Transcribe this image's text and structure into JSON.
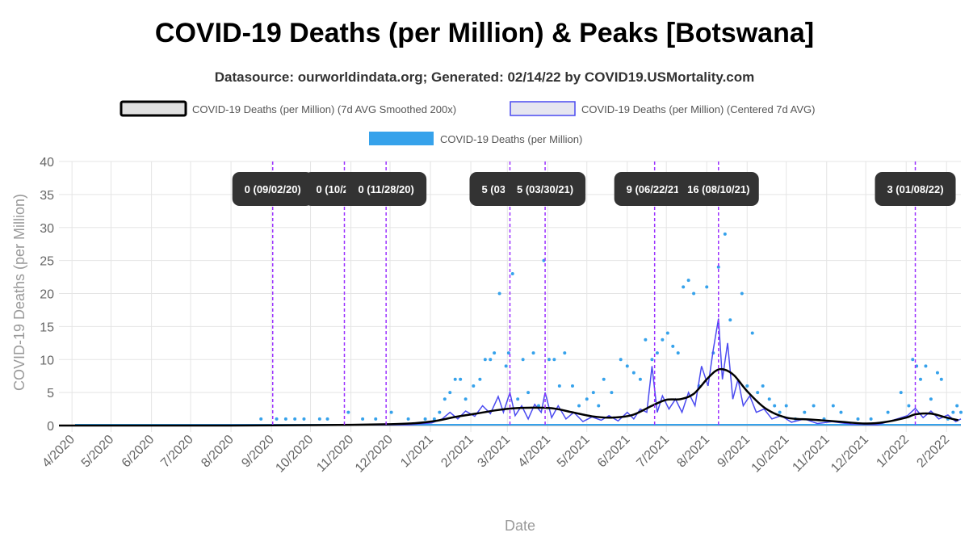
{
  "chart_data": {
    "type": "line",
    "title": "COVID-19 Deaths (per Million) & Peaks [Botswana]",
    "subtitle": "Datasource: ourworldindata.org; Generated: 02/14/22 by COVID19.USMortality.com",
    "xlabel": "Date",
    "ylabel": "COVID-19 Deaths (per Million)",
    "ylim": [
      0,
      40
    ],
    "yticks": [
      0,
      5,
      10,
      15,
      20,
      25,
      30,
      35,
      40
    ],
    "xlim": [
      "2020-03-22",
      "2022-02-12"
    ],
    "xticks": [
      {
        "date": "2020-04-01",
        "label": "4/2020"
      },
      {
        "date": "2020-05-01",
        "label": "5/2020"
      },
      {
        "date": "2020-06-01",
        "label": "6/2020"
      },
      {
        "date": "2020-07-01",
        "label": "7/2020"
      },
      {
        "date": "2020-08-01",
        "label": "8/2020"
      },
      {
        "date": "2020-09-01",
        "label": "9/2020"
      },
      {
        "date": "2020-10-01",
        "label": "10/2020"
      },
      {
        "date": "2020-11-01",
        "label": "11/2020"
      },
      {
        "date": "2020-12-01",
        "label": "12/2020"
      },
      {
        "date": "2021-01-01",
        "label": "1/2021"
      },
      {
        "date": "2021-02-01",
        "label": "2/2021"
      },
      {
        "date": "2021-03-01",
        "label": "3/2021"
      },
      {
        "date": "2021-04-01",
        "label": "4/2021"
      },
      {
        "date": "2021-05-01",
        "label": "5/2021"
      },
      {
        "date": "2021-06-01",
        "label": "6/2021"
      },
      {
        "date": "2021-07-01",
        "label": "7/2021"
      },
      {
        "date": "2021-08-01",
        "label": "8/2021"
      },
      {
        "date": "2021-09-01",
        "label": "9/2021"
      },
      {
        "date": "2021-10-01",
        "label": "10/2021"
      },
      {
        "date": "2021-11-01",
        "label": "11/2021"
      },
      {
        "date": "2021-12-01",
        "label": "12/2021"
      },
      {
        "date": "2022-01-01",
        "label": "1/2022"
      },
      {
        "date": "2022-02-01",
        "label": "2/2022"
      }
    ],
    "grid": true,
    "legend": {
      "position": "top",
      "entries": [
        {
          "label": "COVID-19 Deaths (per Million) (7d AVG Smoothed 200x)",
          "style": "thick-black-box"
        },
        {
          "label": "COVID-19 Deaths (per Million) (Centered 7d AVG)",
          "style": "blue-outline-box"
        },
        {
          "label": "COVID-19 Deaths (per Million)",
          "style": "filled-light-blue"
        }
      ]
    },
    "colors": {
      "smoothed": "#000000",
      "centered": "#4a4af0",
      "daily": "#36a2eb",
      "peak_line": "#9b30ff",
      "peak_label_bg": "#333333",
      "peak_label_text": "#ffffff",
      "grid": "#e5e5e5",
      "axis_text": "#666666",
      "axis_title": "#999999"
    },
    "peaks": [
      {
        "date": "2020-09-02",
        "label": "0 (09/02/20)"
      },
      {
        "date": "2020-10-27",
        "label": "0 (10/27/20)"
      },
      {
        "date": "2020-11-28",
        "label": "0 (11/28/20)"
      },
      {
        "date": "2021-03-03",
        "label": "5 (03/03/21)"
      },
      {
        "date": "2021-03-30",
        "label": "5 (03/30/21)"
      },
      {
        "date": "2021-06-22",
        "label": "9 (06/22/21)"
      },
      {
        "date": "2021-08-10",
        "label": "16 (08/10/21)"
      },
      {
        "date": "2022-01-08",
        "label": "3 (01/08/22)"
      }
    ],
    "series": [
      {
        "name": "COVID-19 Deaths (per Million) (7d AVG Smoothed 200x)",
        "points": [
          [
            "2020-03-22",
            0
          ],
          [
            "2020-08-01",
            0
          ],
          [
            "2020-09-15",
            0.05
          ],
          [
            "2020-11-01",
            0.1
          ],
          [
            "2020-12-01",
            0.2
          ],
          [
            "2020-12-20",
            0.35
          ],
          [
            "2021-01-05",
            0.7
          ],
          [
            "2021-01-20",
            1.3
          ],
          [
            "2021-02-05",
            1.8
          ],
          [
            "2021-02-20",
            2.3
          ],
          [
            "2021-03-05",
            2.6
          ],
          [
            "2021-03-20",
            2.7
          ],
          [
            "2021-04-05",
            2.6
          ],
          [
            "2021-04-20",
            2.0
          ],
          [
            "2021-05-05",
            1.4
          ],
          [
            "2021-05-20",
            1.2
          ],
          [
            "2021-06-05",
            1.6
          ],
          [
            "2021-06-20",
            3.0
          ],
          [
            "2021-07-01",
            3.9
          ],
          [
            "2021-07-12",
            4.0
          ],
          [
            "2021-07-22",
            4.8
          ],
          [
            "2021-08-01",
            7.0
          ],
          [
            "2021-08-08",
            8.3
          ],
          [
            "2021-08-14",
            8.5
          ],
          [
            "2021-08-22",
            7.6
          ],
          [
            "2021-09-01",
            5.2
          ],
          [
            "2021-09-15",
            2.6
          ],
          [
            "2021-10-01",
            1.2
          ],
          [
            "2021-10-20",
            0.9
          ],
          [
            "2021-11-10",
            0.6
          ],
          [
            "2021-12-01",
            0.3
          ],
          [
            "2021-12-15",
            0.5
          ],
          [
            "2022-01-01",
            1.2
          ],
          [
            "2022-01-08",
            1.7
          ],
          [
            "2022-01-20",
            1.8
          ],
          [
            "2022-02-01",
            1.2
          ],
          [
            "2022-02-10",
            0.8
          ]
        ]
      },
      {
        "name": "COVID-19 Deaths (per Million) (Centered 7d AVG)",
        "points": [
          [
            "2020-03-22",
            0
          ],
          [
            "2020-12-15",
            0.1
          ],
          [
            "2021-01-02",
            0.4
          ],
          [
            "2021-01-10",
            1.0
          ],
          [
            "2021-01-16",
            2.0
          ],
          [
            "2021-01-22",
            1.0
          ],
          [
            "2021-01-28",
            2.2
          ],
          [
            "2021-02-04",
            1.4
          ],
          [
            "2021-02-10",
            3.0
          ],
          [
            "2021-02-16",
            1.8
          ],
          [
            "2021-02-22",
            4.4
          ],
          [
            "2021-02-26",
            2.0
          ],
          [
            "2021-03-03",
            5.0
          ],
          [
            "2021-03-07",
            1.5
          ],
          [
            "2021-03-12",
            3.0
          ],
          [
            "2021-03-17",
            1.0
          ],
          [
            "2021-03-22",
            3.2
          ],
          [
            "2021-03-27",
            2.0
          ],
          [
            "2021-03-30",
            5.0
          ],
          [
            "2021-04-04",
            1.2
          ],
          [
            "2021-04-09",
            3.0
          ],
          [
            "2021-04-15",
            1.0
          ],
          [
            "2021-04-21",
            2.0
          ],
          [
            "2021-04-28",
            0.6
          ],
          [
            "2021-05-05",
            1.3
          ],
          [
            "2021-05-12",
            0.8
          ],
          [
            "2021-05-18",
            1.5
          ],
          [
            "2021-05-25",
            0.7
          ],
          [
            "2021-06-01",
            2.0
          ],
          [
            "2021-06-06",
            1.0
          ],
          [
            "2021-06-11",
            2.5
          ],
          [
            "2021-06-16",
            2.0
          ],
          [
            "2021-06-20",
            9.0
          ],
          [
            "2021-06-24",
            2.0
          ],
          [
            "2021-06-28",
            4.5
          ],
          [
            "2021-07-03",
            2.5
          ],
          [
            "2021-07-08",
            4.0
          ],
          [
            "2021-07-13",
            2.0
          ],
          [
            "2021-07-18",
            5.0
          ],
          [
            "2021-07-23",
            3.0
          ],
          [
            "2021-07-28",
            9.0
          ],
          [
            "2021-08-02",
            6.0
          ],
          [
            "2021-08-06",
            11.5
          ],
          [
            "2021-08-10",
            16.2
          ],
          [
            "2021-08-13",
            7.0
          ],
          [
            "2021-08-17",
            12.5
          ],
          [
            "2021-08-21",
            4.0
          ],
          [
            "2021-08-25",
            7.0
          ],
          [
            "2021-08-29",
            3.0
          ],
          [
            "2021-09-03",
            4.5
          ],
          [
            "2021-09-08",
            2.0
          ],
          [
            "2021-09-14",
            2.5
          ],
          [
            "2021-09-20",
            1.0
          ],
          [
            "2021-09-27",
            1.5
          ],
          [
            "2021-10-05",
            0.5
          ],
          [
            "2021-10-15",
            1.0
          ],
          [
            "2021-10-25",
            0.3
          ],
          [
            "2021-11-05",
            0.6
          ],
          [
            "2021-11-20",
            0.2
          ],
          [
            "2021-12-10",
            0.1
          ],
          [
            "2021-12-25",
            1.0
          ],
          [
            "2022-01-02",
            1.5
          ],
          [
            "2022-01-08",
            2.6
          ],
          [
            "2022-01-14",
            1.2
          ],
          [
            "2022-01-20",
            2.2
          ],
          [
            "2022-01-26",
            1.0
          ],
          [
            "2022-02-02",
            1.6
          ],
          [
            "2022-02-08",
            0.6
          ],
          [
            "2022-02-12",
            1.0
          ]
        ]
      },
      {
        "name": "COVID-19 Deaths (per Million)",
        "points": [
          [
            "2020-08-24",
            1
          ],
          [
            "2020-09-05",
            1
          ],
          [
            "2020-09-12",
            1
          ],
          [
            "2020-09-19",
            1
          ],
          [
            "2020-09-26",
            1
          ],
          [
            "2020-10-08",
            1
          ],
          [
            "2020-10-14",
            1
          ],
          [
            "2020-10-30",
            2
          ],
          [
            "2020-11-10",
            1
          ],
          [
            "2020-11-20",
            1
          ],
          [
            "2020-12-02",
            2
          ],
          [
            "2020-12-15",
            1
          ],
          [
            "2020-12-28",
            1
          ],
          [
            "2021-01-04",
            1
          ],
          [
            "2021-01-08",
            2
          ],
          [
            "2021-01-12",
            4
          ],
          [
            "2021-01-16",
            5
          ],
          [
            "2021-01-20",
            7
          ],
          [
            "2021-01-24",
            7
          ],
          [
            "2021-01-28",
            4
          ],
          [
            "2021-02-03",
            6
          ],
          [
            "2021-02-08",
            7
          ],
          [
            "2021-02-12",
            10
          ],
          [
            "2021-02-16",
            10
          ],
          [
            "2021-02-19",
            11
          ],
          [
            "2021-02-23",
            20
          ],
          [
            "2021-02-28",
            9
          ],
          [
            "2021-03-02",
            11
          ],
          [
            "2021-03-05",
            23
          ],
          [
            "2021-03-09",
            4
          ],
          [
            "2021-03-13",
            10
          ],
          [
            "2021-03-17",
            5
          ],
          [
            "2021-03-21",
            11
          ],
          [
            "2021-03-25",
            3
          ],
          [
            "2021-03-29",
            25
          ],
          [
            "2021-04-02",
            10
          ],
          [
            "2021-04-06",
            10
          ],
          [
            "2021-04-10",
            6
          ],
          [
            "2021-04-14",
            11
          ],
          [
            "2021-04-20",
            6
          ],
          [
            "2021-04-25",
            3
          ],
          [
            "2021-05-01",
            4
          ],
          [
            "2021-05-06",
            5
          ],
          [
            "2021-05-10",
            3
          ],
          [
            "2021-05-14",
            7
          ],
          [
            "2021-05-20",
            5
          ],
          [
            "2021-05-27",
            10
          ],
          [
            "2021-06-01",
            9
          ],
          [
            "2021-06-06",
            8
          ],
          [
            "2021-06-11",
            7
          ],
          [
            "2021-06-15",
            13
          ],
          [
            "2021-06-20",
            10
          ],
          [
            "2021-06-24",
            11
          ],
          [
            "2021-06-28",
            13
          ],
          [
            "2021-07-02",
            14
          ],
          [
            "2021-07-06",
            12
          ],
          [
            "2021-07-10",
            11
          ],
          [
            "2021-07-14",
            21
          ],
          [
            "2021-07-18",
            22
          ],
          [
            "2021-07-22",
            20
          ],
          [
            "2021-07-26",
            6
          ],
          [
            "2021-08-01",
            21
          ],
          [
            "2021-08-06",
            11
          ],
          [
            "2021-08-10",
            24
          ],
          [
            "2021-08-15",
            29
          ],
          [
            "2021-08-19",
            16
          ],
          [
            "2021-08-23",
            37
          ],
          [
            "2021-08-28",
            20
          ],
          [
            "2021-09-01",
            6
          ],
          [
            "2021-09-05",
            14
          ],
          [
            "2021-09-09",
            5
          ],
          [
            "2021-09-13",
            6
          ],
          [
            "2021-09-18",
            4
          ],
          [
            "2021-09-22",
            3
          ],
          [
            "2021-09-26",
            2
          ],
          [
            "2021-10-01",
            3
          ],
          [
            "2021-10-08",
            1
          ],
          [
            "2021-10-15",
            2
          ],
          [
            "2021-10-22",
            3
          ],
          [
            "2021-10-30",
            1
          ],
          [
            "2021-11-06",
            3
          ],
          [
            "2021-11-12",
            2
          ],
          [
            "2021-11-25",
            1
          ],
          [
            "2021-12-05",
            1
          ],
          [
            "2021-12-18",
            2
          ],
          [
            "2021-12-28",
            5
          ],
          [
            "2022-01-03",
            3
          ],
          [
            "2022-01-06",
            10
          ],
          [
            "2022-01-09",
            9
          ],
          [
            "2022-01-12",
            7
          ],
          [
            "2022-01-16",
            9
          ],
          [
            "2022-01-20",
            4
          ],
          [
            "2022-01-25",
            8
          ],
          [
            "2022-01-28",
            7
          ],
          [
            "2022-02-02",
            1
          ],
          [
            "2022-02-06",
            2
          ],
          [
            "2022-02-09",
            3
          ],
          [
            "2022-02-12",
            2
          ]
        ]
      }
    ]
  }
}
